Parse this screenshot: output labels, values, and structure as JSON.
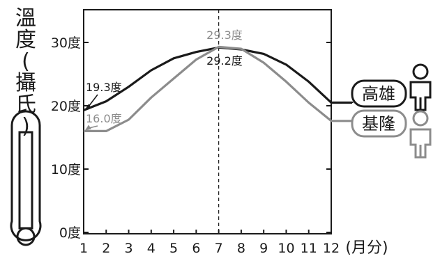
{
  "chart_data": {
    "type": "line",
    "x": [
      1,
      2,
      3,
      4,
      5,
      6,
      7,
      8,
      9,
      10,
      11,
      12
    ],
    "x_tick_labels": [
      "1",
      "2",
      "3",
      "4",
      "5",
      "6",
      "7",
      "8",
      "9",
      "10",
      "11",
      "12"
    ],
    "xlabel": "(月分)",
    "ylabel": "溫度(攝氏)",
    "y_ticks": [
      0,
      10,
      20,
      30
    ],
    "y_tick_labels": [
      "0度",
      "10度",
      "20度",
      "30度"
    ],
    "ylim": [
      0,
      34
    ],
    "xlim": [
      1,
      12
    ],
    "grid": false,
    "series": [
      {
        "name": "高雄",
        "color": "#1a1a1a",
        "values": [
          19.3,
          20.7,
          23.0,
          25.6,
          27.5,
          28.5,
          29.2,
          28.9,
          28.2,
          26.5,
          23.8,
          20.5
        ]
      },
      {
        "name": "基隆",
        "color": "#8c8c8c",
        "values": [
          16.0,
          16.0,
          17.8,
          21.3,
          24.3,
          27.3,
          29.3,
          29.0,
          26.8,
          23.8,
          20.5,
          17.6
        ]
      }
    ],
    "annotations": [
      {
        "text": "19.3度",
        "series": "高雄",
        "x": 1,
        "y": 19.3
      },
      {
        "text": "16.0度",
        "series": "基隆",
        "x": 1,
        "y": 16.0
      },
      {
        "text": "29.3度",
        "series": "基隆",
        "x": 7,
        "y": 29.3
      },
      {
        "text": "29.2度",
        "series": "高雄",
        "x": 7,
        "y": 29.2
      }
    ],
    "reference_line": {
      "x": 7,
      "style": "dashed"
    }
  },
  "colors": {
    "kaohsiung": "#1a1a1a",
    "keelung": "#8c8c8c",
    "axis": "#1a1a1a"
  },
  "icons": {
    "kaohsiung": "person-icon",
    "keelung": "person-icon",
    "thermometer": "thermometer-icon"
  }
}
